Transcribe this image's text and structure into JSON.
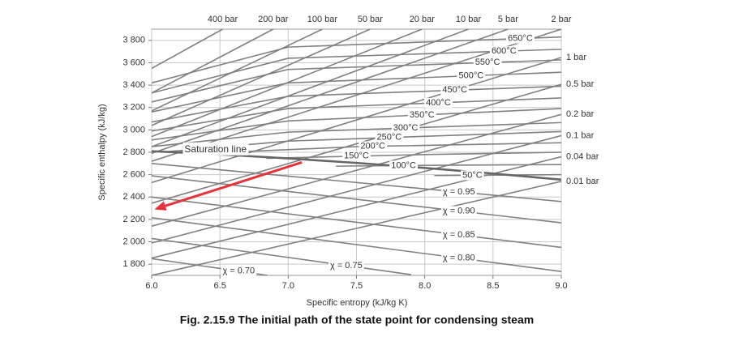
{
  "chart_data": {
    "type": "mollier",
    "title": "Fig. 2.15.9 The initial path of the state point for condensing steam",
    "xlabel": "Specific entropy (kJ/kg K)",
    "ylabel": "Specific enthalpy (kJ/kg)",
    "xlim": [
      6.0,
      9.0
    ],
    "ylim": [
      1700,
      3900
    ],
    "xticks": [
      {
        "value": 6,
        "label": "6.0"
      },
      6.5,
      {
        "value": 7,
        "label": "7.0"
      },
      7.5,
      {
        "value": 8,
        "label": "8.0"
      },
      8.5,
      {
        "value": 9,
        "label": "9.0"
      }
    ],
    "yticks": [
      {
        "value": 1800,
        "label": "1 800"
      },
      {
        "value": 2000,
        "label": "2 000"
      },
      {
        "value": 2200,
        "label": "2 200"
      },
      {
        "value": 2400,
        "label": "2 400"
      },
      {
        "value": 2600,
        "label": "2 600"
      },
      {
        "value": 2800,
        "label": "2 800"
      },
      {
        "value": 3000,
        "label": "3 000"
      },
      {
        "value": 3200,
        "label": "3 200"
      },
      {
        "value": 3400,
        "label": "3 400"
      },
      {
        "value": 3600,
        "label": "3 600"
      },
      {
        "value": 3800,
        "label": "3 800"
      }
    ],
    "grid": true,
    "line_color": "#808080",
    "isobars": [
      {
        "name": "400 bar",
        "x": [
          6.0,
          6.52
        ],
        "values": [
          3550,
          3900
        ]
      },
      {
        "name": "200 bar",
        "x": [
          6.0,
          6.89
        ],
        "values": [
          3330,
          3900
        ]
      },
      {
        "name": "100 bar",
        "x": [
          6.0,
          7.25
        ],
        "values": [
          3170,
          3900
        ]
      },
      {
        "name": "50 bar",
        "x": [
          6.0,
          7.6
        ],
        "values": [
          3040,
          3900
        ]
      },
      {
        "name": "20 bar",
        "x": [
          6.0,
          7.98
        ],
        "values": [
          2940,
          3900
        ]
      },
      {
        "name": "10 bar",
        "x": [
          6.0,
          8.32
        ],
        "values": [
          2850,
          3900
        ]
      },
      {
        "name": "5 bar",
        "x": [
          6.0,
          8.61
        ],
        "values": [
          2790,
          3900
        ]
      },
      {
        "name": "2 bar",
        "x": [
          6.0,
          9.0
        ],
        "values": [
          2720,
          3900
        ]
      },
      {
        "name": "1 bar",
        "x": [
          6.0,
          9.0
        ],
        "values": [
          2530,
          3647
        ]
      },
      {
        "name": "0.5 bar",
        "x": [
          6.0,
          9.0
        ],
        "values": [
          2345,
          3407
        ]
      },
      {
        "name": "0.2 bar",
        "x": [
          6.0,
          9.0
        ],
        "values": [
          2140,
          3138
        ]
      },
      {
        "name": "0.1 bar",
        "x": [
          6.0,
          9.0
        ],
        "values": [
          1990,
          2949
        ]
      },
      {
        "name": "0.04 bar",
        "x": [
          6.0,
          9.0
        ],
        "values": [
          1855,
          2760
        ]
      },
      {
        "name": "0.01 bar",
        "x": [
          6.0,
          9.0
        ],
        "values": [
          1700,
          2540
        ]
      }
    ],
    "isotherms": [
      {
        "name": "650°C",
        "x": [
          6.0,
          7.0,
          9.0
        ],
        "values": [
          3420,
          3740,
          3830
        ]
      },
      {
        "name": "600°C",
        "x": [
          6.0,
          7.0,
          9.0
        ],
        "values": [
          3330,
          3640,
          3720
        ]
      },
      {
        "name": "550°C",
        "x": [
          6.0,
          7.0,
          9.0
        ],
        "values": [
          3250,
          3540,
          3625
        ]
      },
      {
        "name": "500°C",
        "x": [
          6.0,
          7.0,
          9.0
        ],
        "values": [
          3160,
          3420,
          3515
        ]
      },
      {
        "name": "450°C",
        "x": [
          6.0,
          7.0,
          9.0
        ],
        "values": [
          3070,
          3300,
          3390
        ]
      },
      {
        "name": "400°C",
        "x": [
          6.0,
          7.0,
          9.0
        ],
        "values": [
          2990,
          3190,
          3285
        ]
      },
      {
        "name": "350°C",
        "x": [
          6.0,
          7.0,
          9.0
        ],
        "values": [
          2910,
          3080,
          3190
        ]
      },
      {
        "name": "300°C",
        "x": [
          6.0,
          7.0,
          9.0
        ],
        "values": [
          2850,
          2980,
          3065
        ]
      },
      {
        "name": "250°C",
        "x": [
          6.07,
          7.0,
          9.0
        ],
        "values": [
          2801,
          2900,
          2985
        ]
      },
      {
        "name": "200°C",
        "x": [
          6.43,
          7.5,
          9.0
        ],
        "values": [
          2793,
          2850,
          2885
        ]
      },
      {
        "name": "150°C",
        "x": [
          6.84,
          8.0,
          9.0
        ],
        "values": [
          2746,
          2780,
          2800
        ]
      },
      {
        "name": "100°C",
        "x": [
          7.35,
          8.2,
          9.0
        ],
        "values": [
          2676,
          2685,
          2690
        ]
      },
      {
        "name": "50°C",
        "x": [
          8.07,
          9.0
        ],
        "values": [
          2592,
          2600
        ]
      }
    ],
    "quality_lines": [
      {
        "name": "χ = 0.95",
        "x": [
          6.0,
          9.0
        ],
        "values": [
          2700,
          2360
        ]
      },
      {
        "name": "χ = 0.90",
        "x": [
          6.0,
          9.0
        ],
        "values": [
          2590,
          2170
        ]
      },
      {
        "name": "χ = 0.85",
        "x": [
          6.0,
          9.0
        ],
        "values": [
          2400,
          1950
        ]
      },
      {
        "name": "χ = 0.80",
        "x": [
          6.0,
          9.0
        ],
        "values": [
          2215,
          1735
        ]
      },
      {
        "name": "χ = 0.75",
        "x": [
          6.0,
          7.9
        ],
        "values": [
          2030,
          1707
        ]
      },
      {
        "name": "χ = 0.70",
        "x": [
          6.0,
          6.85
        ],
        "values": [
          1850,
          1700
        ]
      }
    ],
    "saturation_line": {
      "name": "Saturation line",
      "x": [
        6.0,
        6.5,
        7.0,
        7.5,
        8.0,
        8.5,
        9.0
      ],
      "values": [
        2810,
        2780,
        2745,
        2705,
        2660,
        2610,
        2555
      ]
    },
    "arrow": {
      "x": [
        7.1,
        6.02
      ],
      "values": [
        2710,
        2290
      ],
      "color": "#e8323a"
    }
  }
}
